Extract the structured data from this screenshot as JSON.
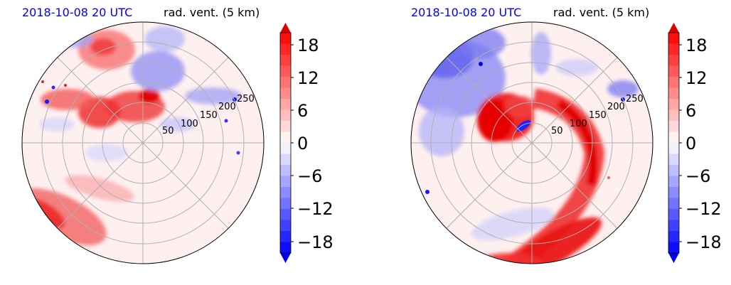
{
  "figure": {
    "panels": [
      {
        "id": "left",
        "date_label": "2018-10-08 20 UTC",
        "var_label": "rad. vent. (5 km)",
        "radial_labels": [
          "50",
          "100",
          "150",
          "200",
          "250"
        ],
        "colorbar_ticks": [
          "18",
          "12",
          "6",
          "0",
          "−6",
          "−12",
          "−18"
        ]
      },
      {
        "id": "right",
        "date_label": "2018-10-08 20 UTC",
        "var_label": "rad. vent. (5 km)",
        "radial_labels": [
          "50",
          "100",
          "150",
          "200",
          "250"
        ],
        "colorbar_ticks": [
          "18",
          "12",
          "6",
          "0",
          "−6",
          "−12",
          "−18"
        ]
      }
    ]
  },
  "chart_data": [
    {
      "type": "heatmap",
      "subtype": "polar filled contour",
      "title_left": "2018-10-08 20 UTC",
      "title_right": "rad. vent. (5 km)",
      "r_ticks": [
        50,
        100,
        150,
        200,
        250
      ],
      "colorbar": {
        "ticks": [
          18,
          12,
          6,
          0,
          -6,
          -12,
          -18
        ],
        "range": [
          -20,
          20
        ],
        "colormap": "bwr",
        "extend": "both"
      },
      "grid": true,
      "theta_gridlines_deg": [
        0,
        45,
        90,
        135,
        180,
        225,
        270,
        315
      ]
    },
    {
      "type": "heatmap",
      "subtype": "polar filled contour",
      "title_left": "2018-10-08 20 UTC",
      "title_right": "rad. vent. (5 km)",
      "r_ticks": [
        50,
        100,
        150,
        200,
        250
      ],
      "colorbar": {
        "ticks": [
          18,
          12,
          6,
          0,
          -6,
          -12,
          -18
        ],
        "range": [
          -20,
          20
        ],
        "colormap": "bwr",
        "extend": "both"
      },
      "grid": true,
      "theta_gridlines_deg": [
        0,
        45,
        90,
        135,
        180,
        225,
        270,
        315
      ]
    }
  ],
  "colors": {
    "positive_max": "#ff0000",
    "negative_max": "#0000ff",
    "neutral": "#ffffff",
    "date_text": "#0000ff",
    "grid": "#b0b0b0"
  }
}
